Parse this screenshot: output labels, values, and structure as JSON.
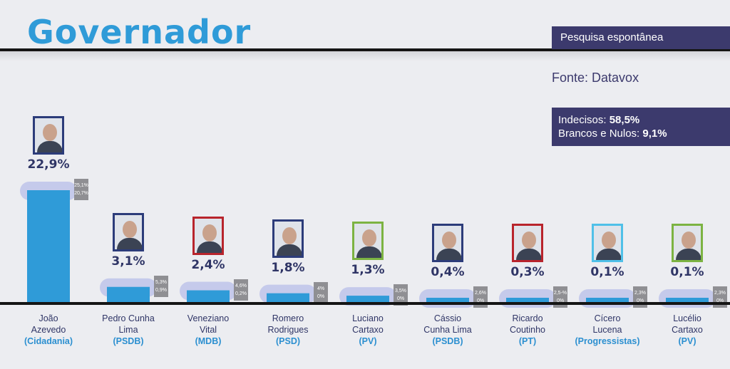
{
  "header": {
    "title": "Governador",
    "badge": "Pesquisa espontânea",
    "source": "Fonte: Datavox",
    "undecided_label": "Indecisos: ",
    "undecided_value": "58,5%",
    "blank_label": "Brancos e Nulos: ",
    "blank_value": "9,1%"
  },
  "colors": {
    "bar": "#2f9bd8",
    "accent": "#3c3a6d",
    "title": "#2f9bd8"
  },
  "chart_data": {
    "type": "bar",
    "ylim": [
      0,
      25
    ],
    "candidates": [
      {
        "name": "João Azevedo",
        "party": "(Cidadania)",
        "value": 22.9,
        "label": "22,9%",
        "range": [
          "25,1%",
          "20,7%"
        ],
        "range_values": [
          25.1,
          20.7
        ],
        "frame": "#2c3c7a"
      },
      {
        "name": "Pedro Cunha Lima",
        "party": "(PSDB)",
        "value": 3.1,
        "label": "3,1%",
        "range": [
          "5,3%",
          "0,9%"
        ],
        "range_values": [
          5.3,
          0.9
        ],
        "frame": "#2c3c7a"
      },
      {
        "name": "Veneziano Vital",
        "party": "(MDB)",
        "value": 2.4,
        "label": "2,4%",
        "range": [
          "4,6%",
          "0,2%"
        ],
        "range_values": [
          4.6,
          0.2
        ],
        "frame": "#b8242c"
      },
      {
        "name": "Romero Rodrigues",
        "party": "(PSD)",
        "value": 1.8,
        "label": "1,8%",
        "range": [
          "4%",
          "0%"
        ],
        "range_values": [
          4,
          0
        ],
        "frame": "#2c3c7a"
      },
      {
        "name": "Luciano Cartaxo",
        "party": "(PV)",
        "value": 1.3,
        "label": "1,3%",
        "range": [
          "3,5%",
          "0%"
        ],
        "range_values": [
          3.5,
          0
        ],
        "frame": "#7cb342"
      },
      {
        "name": "Cássio Cunha Lima",
        "party": "(PSDB)",
        "value": 0.4,
        "label": "0,4%",
        "range": [
          "2,6%",
          "0%"
        ],
        "range_values": [
          2.6,
          0
        ],
        "frame": "#2c3c7a"
      },
      {
        "name": "Ricardo Coutinho",
        "party": "(PT)",
        "value": 0.3,
        "label": "0,3%",
        "range": [
          "2,5-%",
          "0%"
        ],
        "range_values": [
          2.5,
          0
        ],
        "frame": "#b8242c"
      },
      {
        "name": "Cícero Lucena",
        "party": "(Progressistas)",
        "value": 0.1,
        "label": "0,1%",
        "range": [
          "2,3%",
          "0%"
        ],
        "range_values": [
          2.3,
          0
        ],
        "frame": "#4fc0e8"
      },
      {
        "name": "Lucélio Cartaxo",
        "party": "(PV)",
        "value": 0.1,
        "label": "0,1%",
        "range": [
          "2,3%",
          "0%"
        ],
        "range_values": [
          2.3,
          0
        ],
        "frame": "#7cb342"
      }
    ],
    "name_lines": [
      [
        "João",
        "Azevedo"
      ],
      [
        "Pedro Cunha",
        "Lima"
      ],
      [
        "Veneziano",
        "Vital"
      ],
      [
        "Romero",
        "Rodrigues"
      ],
      [
        "Luciano",
        "Cartaxo"
      ],
      [
        "Cássio",
        "Cunha Lima"
      ],
      [
        "Ricardo",
        "Coutinho"
      ],
      [
        "Cícero",
        "Lucena"
      ],
      [
        "Lucélio",
        "Cartaxo"
      ]
    ]
  }
}
